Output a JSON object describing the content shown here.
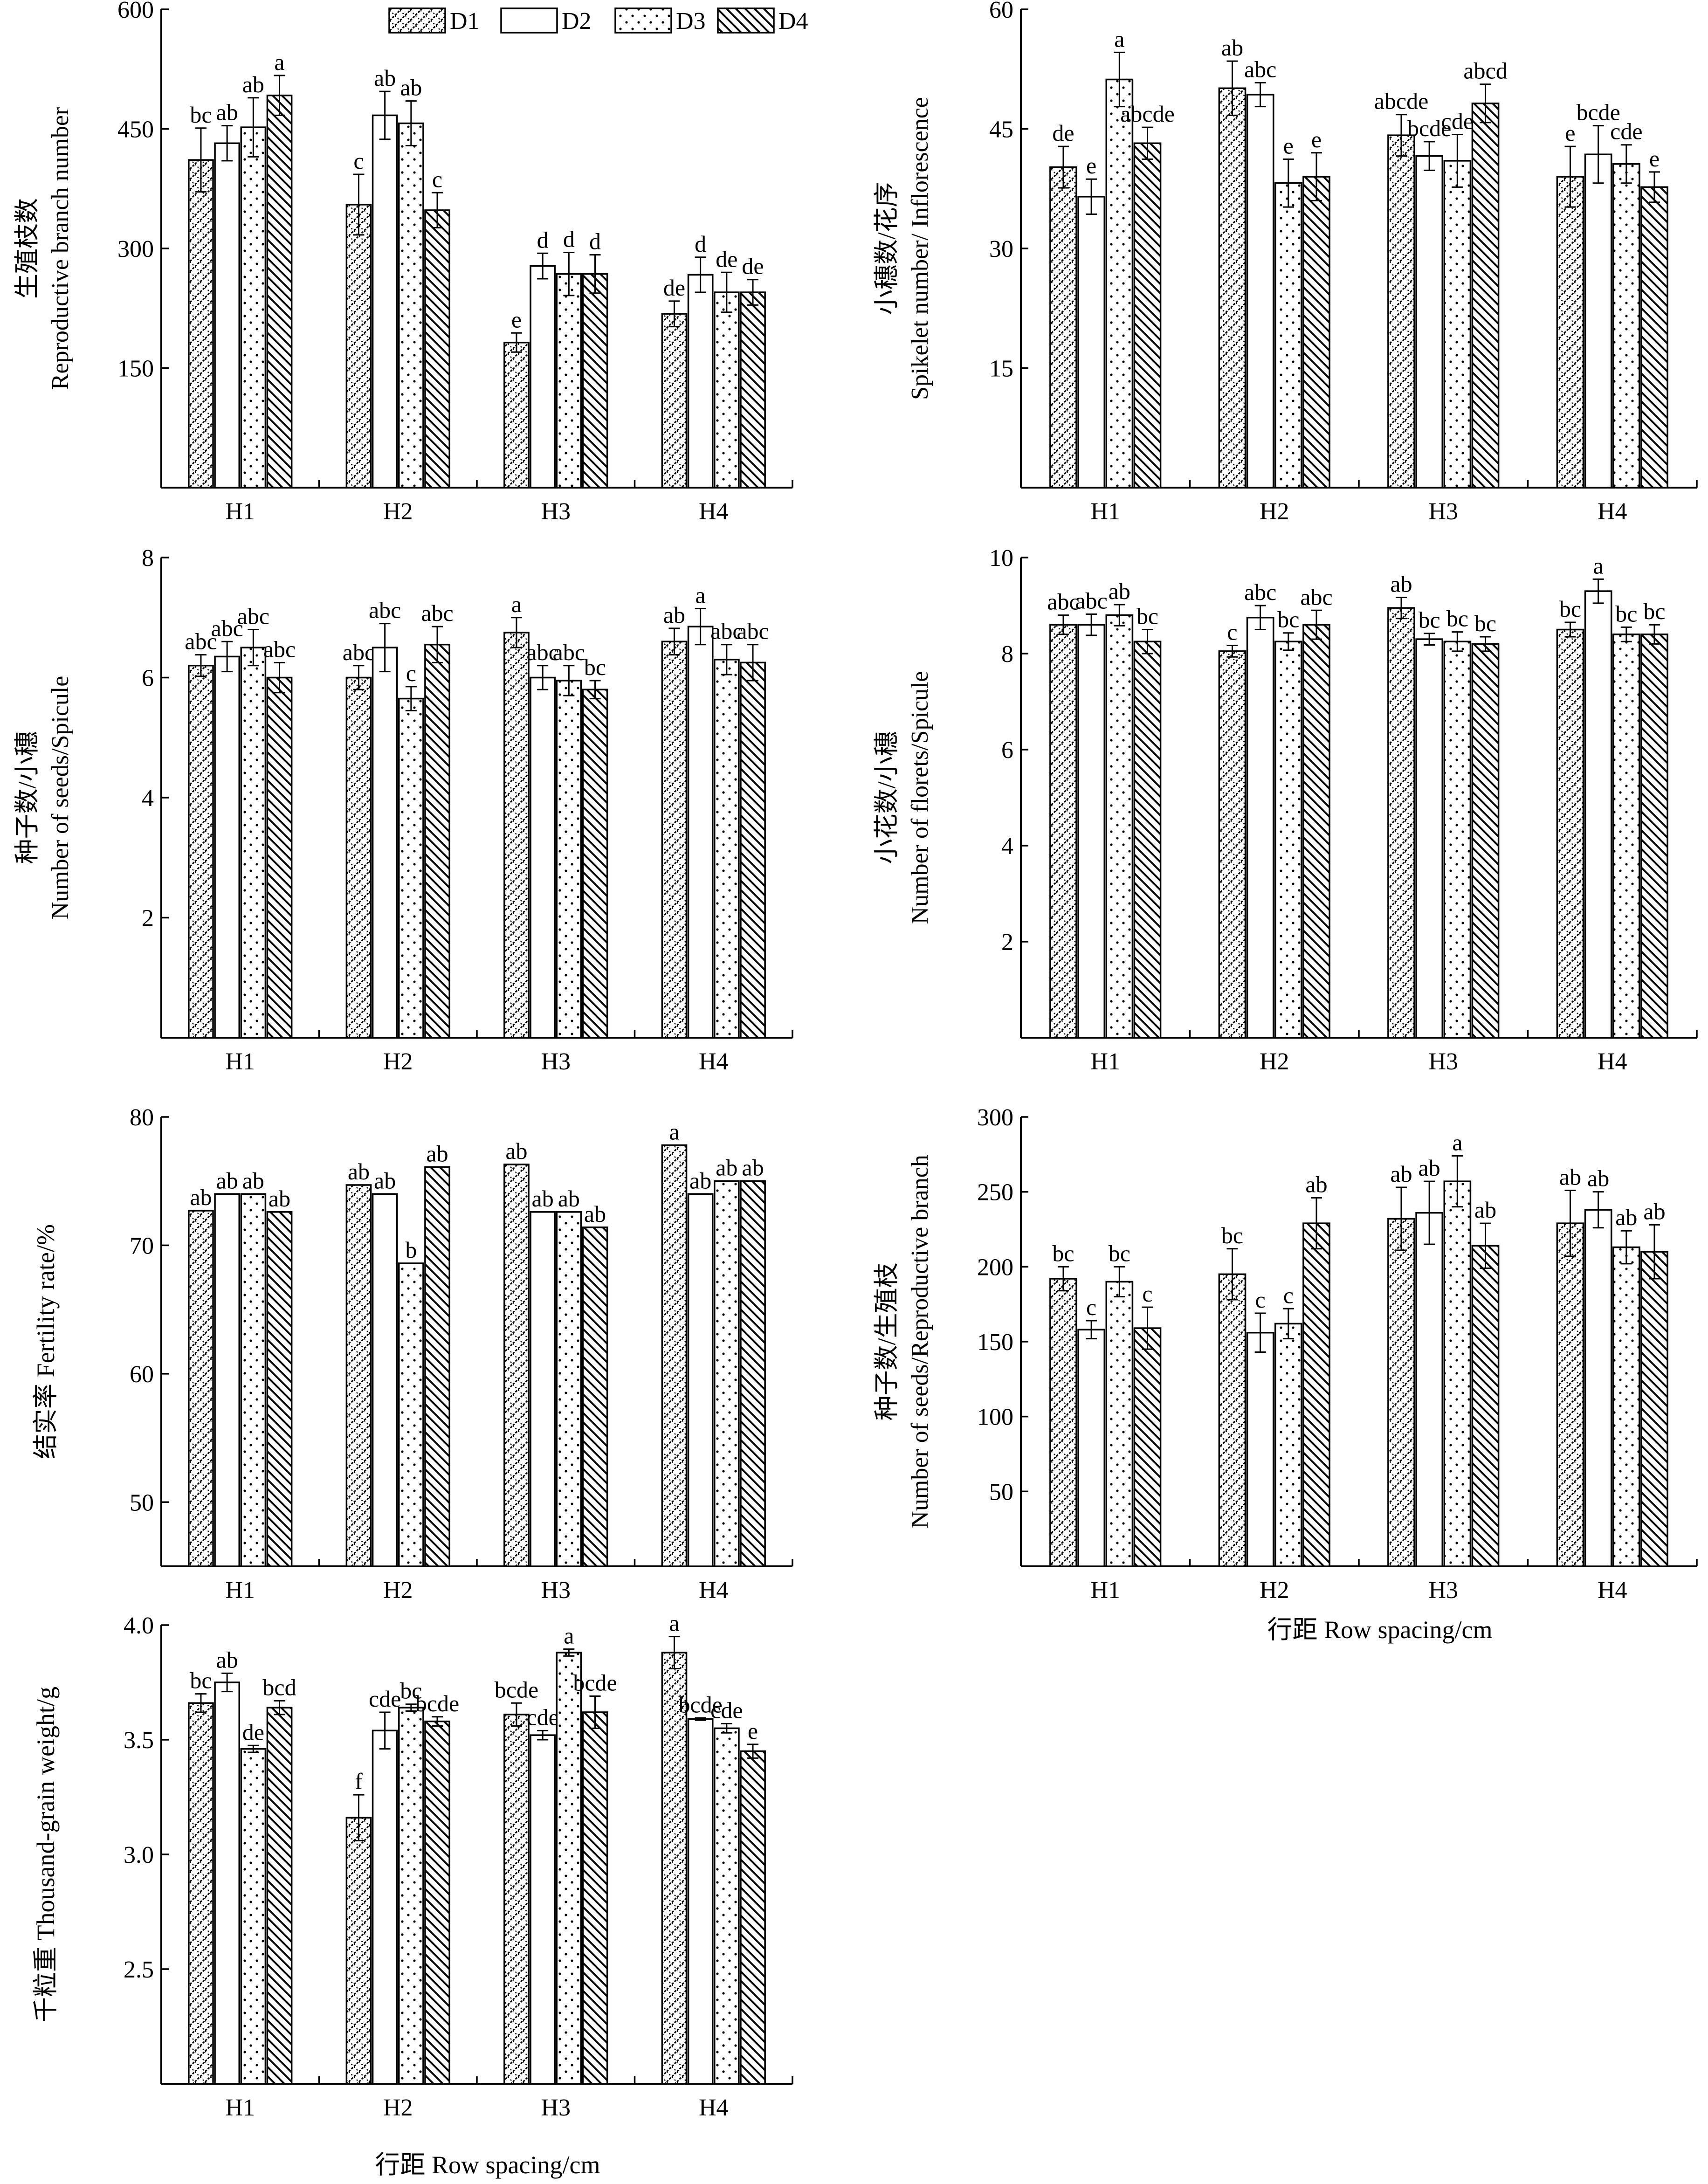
{
  "legend": [
    "D1",
    "D2",
    "D3",
    "D4"
  ],
  "xlabel_common": "行距 Row spacing/cm",
  "chart_data": [
    {
      "id": "p1",
      "type": "bar",
      "ylabel_zh": "生殖枝数",
      "ylabel_en": "Reproductive branch number",
      "categories": [
        "H1",
        "H2",
        "H3",
        "H4"
      ],
      "ylim": [
        0,
        600
      ],
      "ticks": [
        150,
        300,
        450,
        600
      ],
      "series": [
        {
          "name": "D1",
          "values": [
            411,
            355,
            182,
            218
          ],
          "errors": [
            40,
            38,
            12,
            16
          ],
          "letters": [
            "bc",
            "c",
            "e",
            "de"
          ]
        },
        {
          "name": "D2",
          "values": [
            432,
            467,
            278,
            267
          ],
          "errors": [
            22,
            30,
            16,
            22
          ],
          "letters": [
            "ab",
            "ab",
            "d",
            "d"
          ]
        },
        {
          "name": "D3",
          "values": [
            452,
            457,
            268,
            245
          ],
          "errors": [
            37,
            28,
            27,
            25
          ],
          "letters": [
            "ab",
            "ab",
            "d",
            "de"
          ]
        },
        {
          "name": "D4",
          "values": [
            492,
            348,
            268,
            245
          ],
          "errors": [
            25,
            22,
            24,
            16
          ],
          "letters": [
            "a",
            "c",
            "d",
            "de"
          ]
        }
      ]
    },
    {
      "id": "p2",
      "type": "bar",
      "ylabel_zh": "小穗数/花序",
      "ylabel_en": "Spikelet number/ Inflorescence",
      "categories": [
        "H1",
        "H2",
        "H3",
        "H4"
      ],
      "ylim": [
        0,
        60
      ],
      "ticks": [
        15,
        30,
        45,
        60
      ],
      "series": [
        {
          "name": "D1",
          "values": [
            40.2,
            50.1,
            44.2,
            39.0
          ],
          "errors": [
            2.6,
            3.4,
            2.6,
            3.8
          ],
          "letters": [
            "de",
            "ab",
            "abcde",
            "e"
          ]
        },
        {
          "name": "D2",
          "values": [
            36.5,
            49.3,
            41.6,
            41.8
          ],
          "errors": [
            2.2,
            1.5,
            1.8,
            3.6
          ],
          "letters": [
            "e",
            "abc",
            "bcde",
            "bcde"
          ]
        },
        {
          "name": "D3",
          "values": [
            51.2,
            38.2,
            41.0,
            40.6
          ],
          "errors": [
            3.4,
            3.0,
            3.3,
            2.4
          ],
          "letters": [
            "a",
            "e",
            "cde",
            "cde"
          ]
        },
        {
          "name": "D4",
          "values": [
            43.2,
            39.0,
            48.2,
            37.7
          ],
          "errors": [
            2.0,
            3.0,
            2.4,
            1.9
          ],
          "letters": [
            "abcde",
            "e",
            "abcd",
            "e"
          ]
        }
      ]
    },
    {
      "id": "p3",
      "type": "bar",
      "ylabel_zh": "种子数/小穗",
      "ylabel_en": "Number of seeds/Spicule",
      "categories": [
        "H1",
        "H2",
        "H3",
        "H4"
      ],
      "ylim": [
        0,
        8
      ],
      "ticks": [
        2,
        4,
        6,
        8
      ],
      "series": [
        {
          "name": "D1",
          "values": [
            6.2,
            6.0,
            6.75,
            6.6
          ],
          "errors": [
            0.18,
            0.2,
            0.25,
            0.22
          ],
          "letters": [
            "abc",
            "abc",
            "a",
            "ab"
          ]
        },
        {
          "name": "D2",
          "values": [
            6.35,
            6.5,
            6.0,
            6.85
          ],
          "errors": [
            0.25,
            0.4,
            0.2,
            0.3
          ],
          "letters": [
            "abc",
            "abc",
            "abc",
            "a"
          ]
        },
        {
          "name": "D3",
          "values": [
            6.5,
            5.65,
            5.95,
            6.3
          ],
          "errors": [
            0.3,
            0.2,
            0.25,
            0.25
          ],
          "letters": [
            "abc",
            "c",
            "abc",
            "abc"
          ]
        },
        {
          "name": "D4",
          "values": [
            6.0,
            6.55,
            5.8,
            6.25
          ],
          "errors": [
            0.25,
            0.3,
            0.15,
            0.3
          ],
          "letters": [
            "abc",
            "abc",
            "bc",
            "abc"
          ]
        }
      ]
    },
    {
      "id": "p4",
      "type": "bar",
      "ylabel_zh": "小花数/小穗",
      "ylabel_en": "Number of florets/Spicule",
      "categories": [
        "H1",
        "H2",
        "H3",
        "H4"
      ],
      "ylim": [
        0,
        10
      ],
      "ticks": [
        2,
        4,
        6,
        8,
        10
      ],
      "series": [
        {
          "name": "D1",
          "values": [
            8.6,
            8.05,
            8.95,
            8.5
          ],
          "errors": [
            0.2,
            0.12,
            0.22,
            0.15
          ],
          "letters": [
            "abc",
            "c",
            "ab",
            "bc"
          ]
        },
        {
          "name": "D2",
          "values": [
            8.6,
            8.75,
            8.3,
            9.3
          ],
          "errors": [
            0.22,
            0.25,
            0.12,
            0.25
          ],
          "letters": [
            "abc",
            "abc",
            "bc",
            "a"
          ]
        },
        {
          "name": "D3",
          "values": [
            8.8,
            8.25,
            8.25,
            8.4
          ],
          "errors": [
            0.22,
            0.18,
            0.2,
            0.15
          ],
          "letters": [
            "ab",
            "bc",
            "bc",
            "bc"
          ]
        },
        {
          "name": "D4",
          "values": [
            8.25,
            8.6,
            8.2,
            8.4
          ],
          "errors": [
            0.25,
            0.3,
            0.15,
            0.2
          ],
          "letters": [
            "bc",
            "abc",
            "bc",
            "bc"
          ]
        }
      ]
    },
    {
      "id": "p5",
      "type": "bar",
      "ylabel_zh": "结实率",
      "ylabel_en": "Fertility rate/%",
      "categories": [
        "H1",
        "H2",
        "H3",
        "H4"
      ],
      "ylim": [
        45,
        80
      ],
      "ticks": [
        50,
        60,
        70,
        80
      ],
      "series": [
        {
          "name": "D1",
          "values": [
            72.7,
            74.7,
            76.3,
            77.8
          ],
          "errors": [
            0,
            0,
            0,
            0
          ],
          "letters": [
            "ab",
            "ab",
            "ab",
            "a"
          ]
        },
        {
          "name": "D2",
          "values": [
            74.0,
            74.0,
            72.6,
            74.0
          ],
          "errors": [
            0,
            0,
            0,
            0
          ],
          "letters": [
            "ab",
            "ab",
            "ab",
            "ab"
          ]
        },
        {
          "name": "D3",
          "values": [
            74.0,
            68.6,
            72.6,
            75.0
          ],
          "errors": [
            0,
            0,
            0,
            0
          ],
          "letters": [
            "ab",
            "b",
            "ab",
            "ab"
          ]
        },
        {
          "name": "D4",
          "values": [
            72.6,
            76.1,
            71.4,
            75.0
          ],
          "errors": [
            0,
            0,
            0,
            0
          ],
          "letters": [
            "ab",
            "ab",
            "ab",
            "ab"
          ]
        }
      ]
    },
    {
      "id": "p6",
      "type": "bar",
      "ylabel_zh": "种子数/生殖枝",
      "ylabel_en": "Number of seeds/Reproductive branch",
      "categories": [
        "H1",
        "H2",
        "H3",
        "H4"
      ],
      "ylim": [
        0,
        300
      ],
      "ticks": [
        50,
        100,
        150,
        200,
        250,
        300
      ],
      "series": [
        {
          "name": "D1",
          "values": [
            192,
            195,
            232,
            229
          ],
          "errors": [
            8,
            17,
            21,
            22
          ],
          "letters": [
            "bc",
            "bc",
            "ab",
            "ab"
          ]
        },
        {
          "name": "D2",
          "values": [
            158,
            156,
            236,
            238
          ],
          "errors": [
            6,
            13,
            21,
            12
          ],
          "letters": [
            "c",
            "c",
            "ab",
            "ab"
          ]
        },
        {
          "name": "D3",
          "values": [
            190,
            162,
            257,
            213
          ],
          "errors": [
            10,
            10,
            17,
            11
          ],
          "letters": [
            "bc",
            "c",
            "a",
            "ab"
          ]
        },
        {
          "name": "D4",
          "values": [
            159,
            229,
            214,
            210
          ],
          "errors": [
            14,
            17,
            15,
            18
          ],
          "letters": [
            "c",
            "ab",
            "ab",
            "ab"
          ]
        }
      ]
    },
    {
      "id": "p7",
      "type": "bar",
      "ylabel_zh": "千粒重",
      "ylabel_en": "Thousand-grain weight/g",
      "categories": [
        "H1",
        "H2",
        "H3",
        "H4"
      ],
      "ylim": [
        2.0,
        4.0
      ],
      "ticks": [
        2.5,
        3.0,
        3.5,
        4.0
      ],
      "series": [
        {
          "name": "D1",
          "values": [
            3.66,
            3.16,
            3.61,
            3.88
          ],
          "errors": [
            0.04,
            0.1,
            0.05,
            0.07
          ],
          "letters": [
            "bc",
            "f",
            "bcde",
            "a"
          ]
        },
        {
          "name": "D2",
          "values": [
            3.75,
            3.54,
            3.52,
            3.59
          ],
          "errors": [
            0.04,
            0.08,
            0.02,
            0.005
          ],
          "letters": [
            "ab",
            "cde",
            "cde",
            "bcde"
          ]
        },
        {
          "name": "D3",
          "values": [
            3.46,
            3.64,
            3.88,
            3.55
          ],
          "errors": [
            0.015,
            0.015,
            0.015,
            0.02
          ],
          "letters": [
            "de",
            "bc",
            "a",
            "cde"
          ]
        },
        {
          "name": "D4",
          "values": [
            3.64,
            3.58,
            3.62,
            3.45
          ],
          "errors": [
            0.03,
            0.02,
            0.07,
            0.03
          ],
          "letters": [
            "bcd",
            "bcde",
            "bcde",
            "e"
          ]
        }
      ]
    }
  ]
}
